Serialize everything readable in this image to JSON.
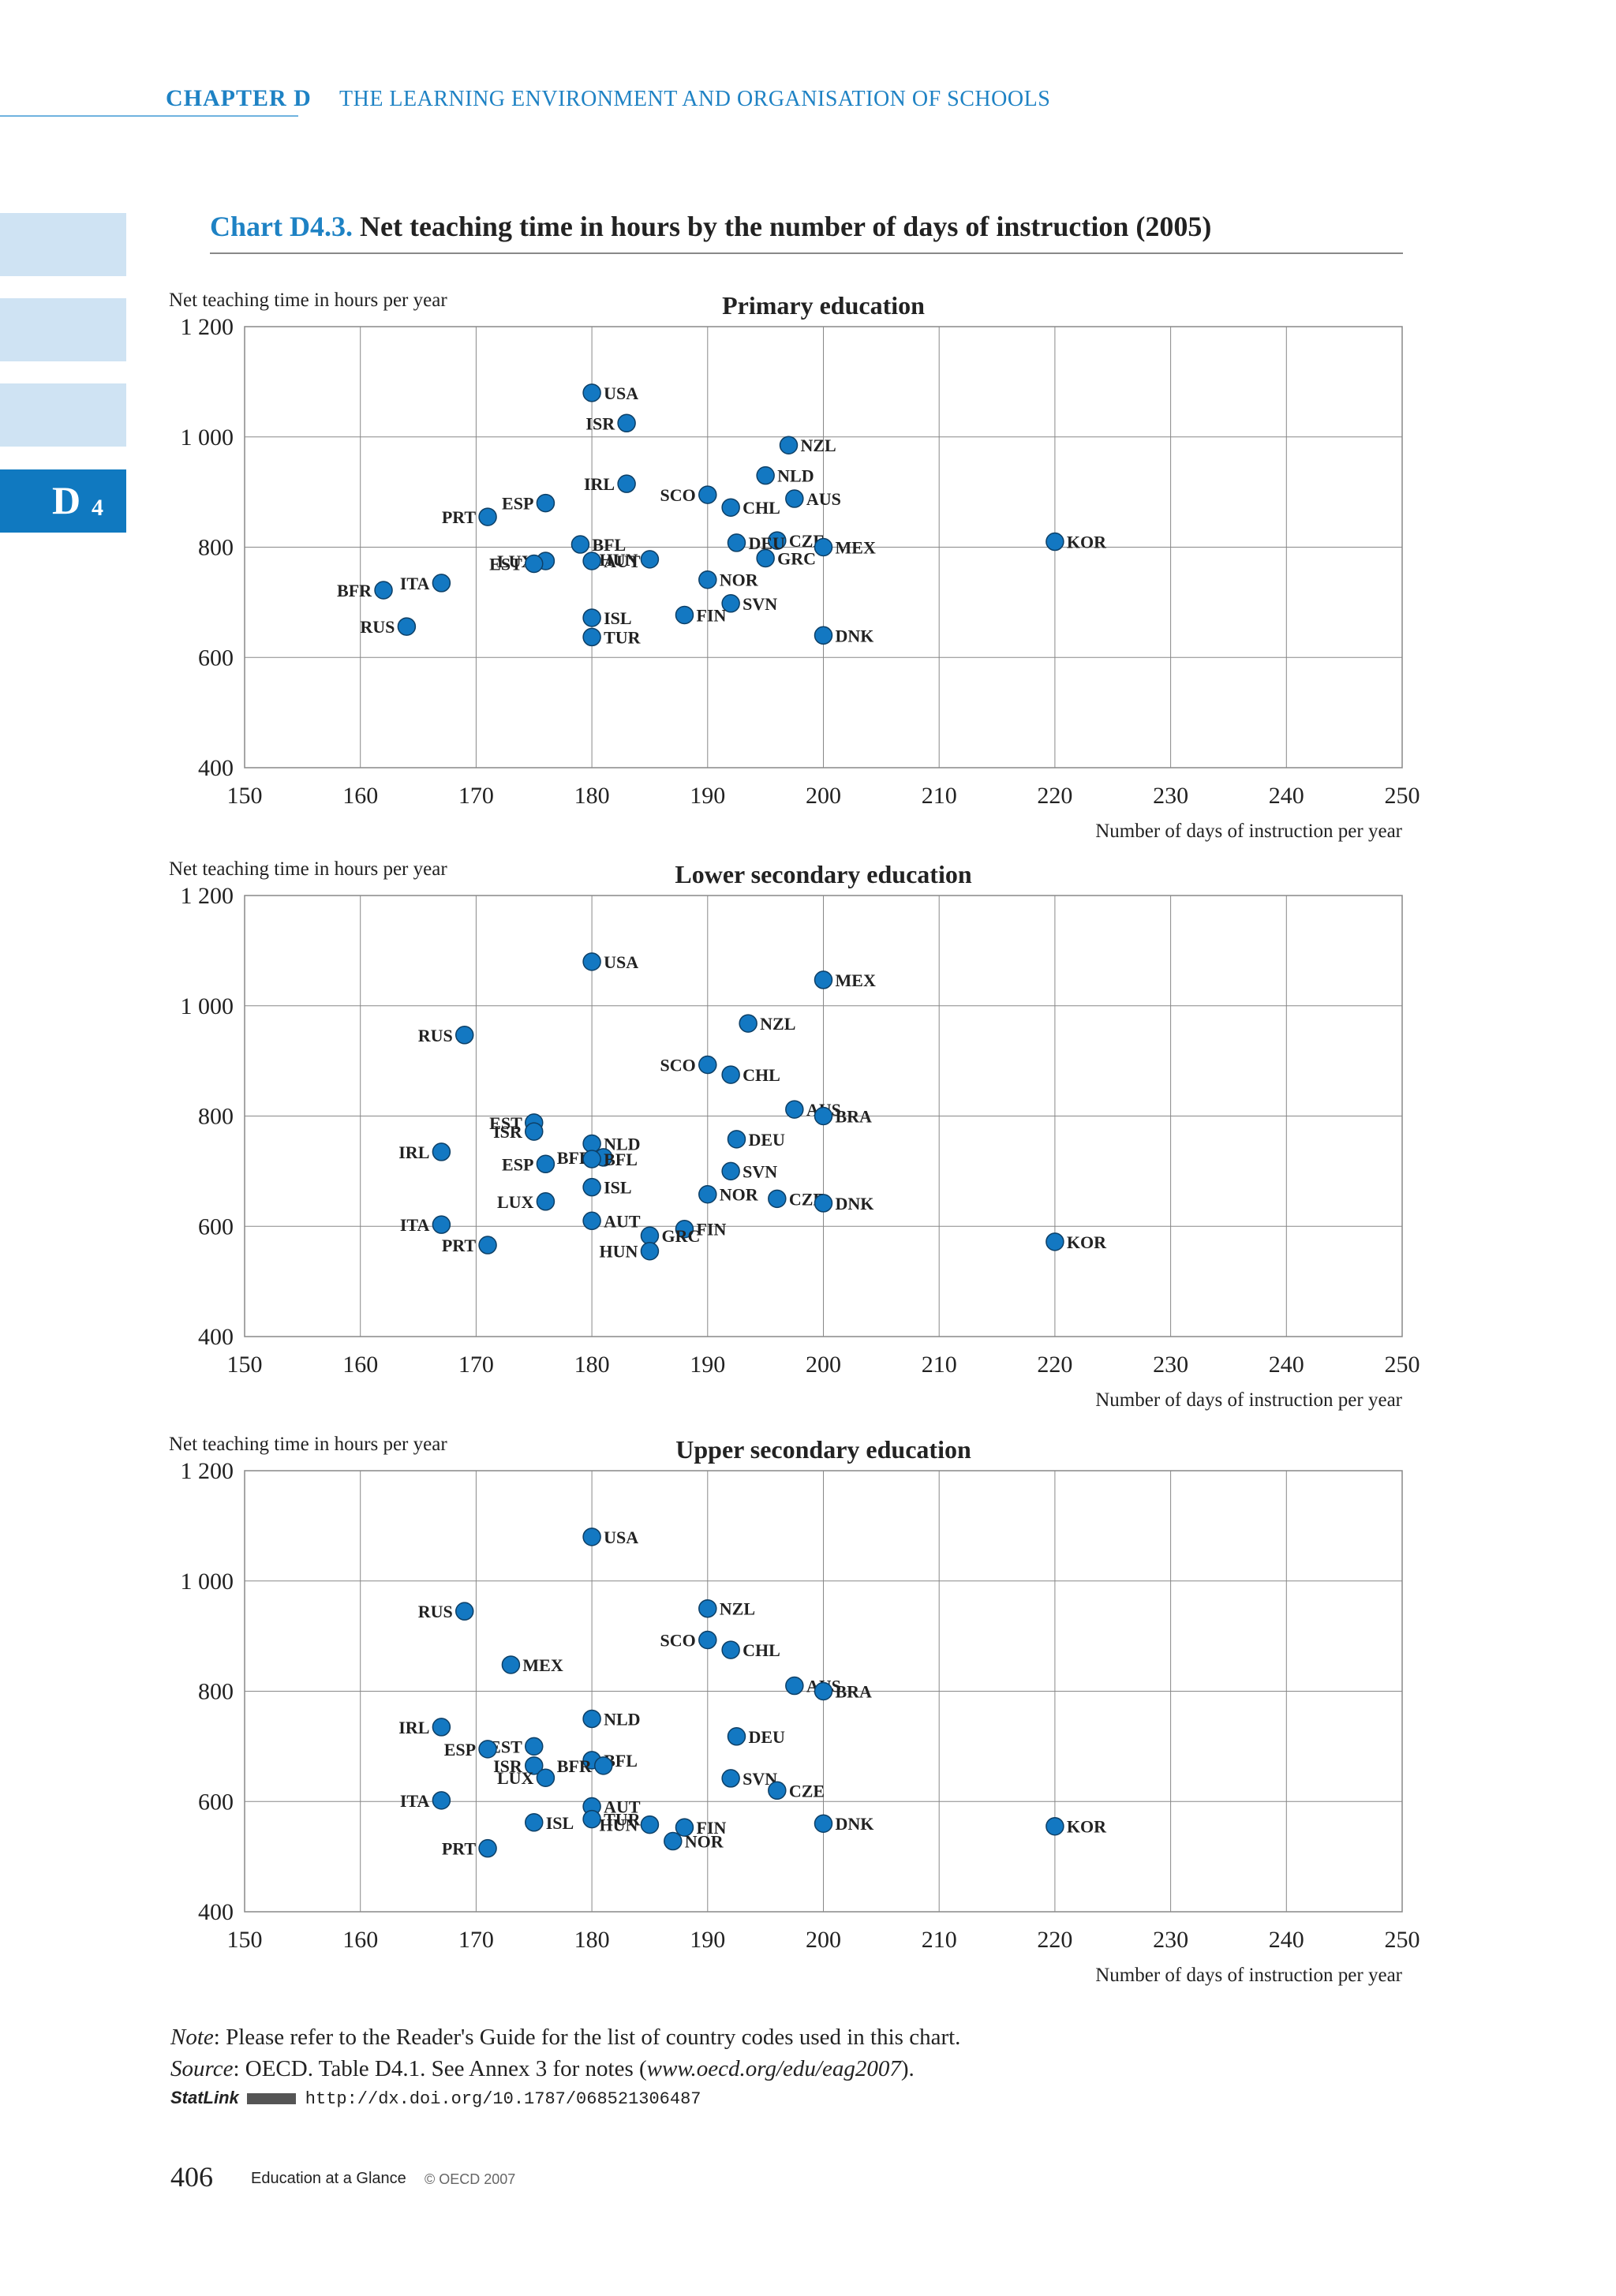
{
  "header": {
    "chapter": "CHAPTER D",
    "title": "THE LEARNING ENVIRONMENT AND ORGANISATION OF SCHOOLS"
  },
  "side_tab": {
    "label": "D",
    "sub": "4"
  },
  "chart_title": {
    "number": "Chart D4.3.",
    "text": "Net teaching time in hours by the number of days of instruction (2005)"
  },
  "chart_data": [
    {
      "type": "scatter",
      "title": "Primary education",
      "ylabel": "Net teaching time in hours per year",
      "xlabel": "Number of days of instruction per year",
      "xlim": [
        150,
        250
      ],
      "ylim": [
        400,
        1200
      ],
      "xticks": [
        "150",
        "160",
        "170",
        "180",
        "190",
        "200",
        "210",
        "220",
        "230",
        "240",
        "250"
      ],
      "yticks": [
        "400",
        "600",
        "800",
        "1 000",
        "1 200"
      ],
      "grid": true,
      "points": [
        {
          "label": "USA",
          "x": 180,
          "y": 1080
        },
        {
          "label": "ISR",
          "x": 183,
          "y": 1025
        },
        {
          "label": "NZL",
          "x": 197,
          "y": 985
        },
        {
          "label": "NLD",
          "x": 195,
          "y": 930
        },
        {
          "label": "IRL",
          "x": 183,
          "y": 915
        },
        {
          "label": "SCO",
          "x": 190,
          "y": 895
        },
        {
          "label": "AUS",
          "x": 197.5,
          "y": 888
        },
        {
          "label": "ESP",
          "x": 176,
          "y": 880
        },
        {
          "label": "CHL",
          "x": 192,
          "y": 872
        },
        {
          "label": "PRT",
          "x": 171,
          "y": 855
        },
        {
          "label": "CZE",
          "x": 196,
          "y": 812
        },
        {
          "label": "KOR",
          "x": 220,
          "y": 810
        },
        {
          "label": "DEU",
          "x": 192.5,
          "y": 808
        },
        {
          "label": "BFL",
          "x": 179,
          "y": 805
        },
        {
          "label": "MEX",
          "x": 200,
          "y": 800
        },
        {
          "label": "GRC",
          "x": 195,
          "y": 780
        },
        {
          "label": "HUN",
          "x": 185,
          "y": 778
        },
        {
          "label": "LUX",
          "x": 176,
          "y": 775
        },
        {
          "label": "AUT",
          "x": 180,
          "y": 775
        },
        {
          "label": "EST",
          "x": 175,
          "y": 770
        },
        {
          "label": "NOR",
          "x": 190,
          "y": 741
        },
        {
          "label": "ITA",
          "x": 167,
          "y": 735
        },
        {
          "label": "BFR",
          "x": 162,
          "y": 722
        },
        {
          "label": "SVN",
          "x": 192,
          "y": 698
        },
        {
          "label": "FIN",
          "x": 188,
          "y": 677
        },
        {
          "label": "ISL",
          "x": 180,
          "y": 672
        },
        {
          "label": "RUS",
          "x": 164,
          "y": 656
        },
        {
          "label": "TUR",
          "x": 180,
          "y": 637
        },
        {
          "label": "DNK",
          "x": 200,
          "y": 640
        }
      ]
    },
    {
      "type": "scatter",
      "title": "Lower secondary education",
      "ylabel": "Net teaching time in hours per year",
      "xlabel": "Number of days of instruction per year",
      "xlim": [
        150,
        250
      ],
      "ylim": [
        400,
        1200
      ],
      "xticks": [
        "150",
        "160",
        "170",
        "180",
        "190",
        "200",
        "210",
        "220",
        "230",
        "240",
        "250"
      ],
      "yticks": [
        "400",
        "600",
        "800",
        "1 000",
        "1 200"
      ],
      "grid": true,
      "points": [
        {
          "label": "USA",
          "x": 180,
          "y": 1080
        },
        {
          "label": "MEX",
          "x": 200,
          "y": 1047
        },
        {
          "label": "NZL",
          "x": 193.5,
          "y": 968
        },
        {
          "label": "RUS",
          "x": 169,
          "y": 947
        },
        {
          "label": "SCO",
          "x": 190,
          "y": 893
        },
        {
          "label": "CHL",
          "x": 192,
          "y": 875
        },
        {
          "label": "AUS",
          "x": 197.5,
          "y": 812
        },
        {
          "label": "BRA",
          "x": 200,
          "y": 800
        },
        {
          "label": "EST",
          "x": 175,
          "y": 788
        },
        {
          "label": "ISR",
          "x": 175,
          "y": 772
        },
        {
          "label": "DEU",
          "x": 192.5,
          "y": 758
        },
        {
          "label": "NLD",
          "x": 180,
          "y": 750
        },
        {
          "label": "IRL",
          "x": 167,
          "y": 735
        },
        {
          "label": "BFR",
          "x": 181,
          "y": 725
        },
        {
          "label": "BFL",
          "x": 180,
          "y": 722
        },
        {
          "label": "ESP",
          "x": 176,
          "y": 713
        },
        {
          "label": "SVN",
          "x": 192,
          "y": 700
        },
        {
          "label": "ISL",
          "x": 180,
          "y": 671
        },
        {
          "label": "NOR",
          "x": 190,
          "y": 658
        },
        {
          "label": "CZE",
          "x": 196,
          "y": 650
        },
        {
          "label": "LUX",
          "x": 176,
          "y": 645
        },
        {
          "label": "DNK",
          "x": 200,
          "y": 642
        },
        {
          "label": "AUT",
          "x": 180,
          "y": 610
        },
        {
          "label": "ITA",
          "x": 167,
          "y": 603
        },
        {
          "label": "FIN",
          "x": 188,
          "y": 595
        },
        {
          "label": "GRC",
          "x": 185,
          "y": 583
        },
        {
          "label": "KOR",
          "x": 220,
          "y": 572
        },
        {
          "label": "PRT",
          "x": 171,
          "y": 566
        },
        {
          "label": "HUN",
          "x": 185,
          "y": 555
        }
      ]
    },
    {
      "type": "scatter",
      "title": "Upper secondary education",
      "ylabel": "Net teaching time in hours per year",
      "xlabel": "Number of days of instruction per year",
      "xlim": [
        150,
        250
      ],
      "ylim": [
        400,
        1200
      ],
      "xticks": [
        "150",
        "160",
        "170",
        "180",
        "190",
        "200",
        "210",
        "220",
        "230",
        "240",
        "250"
      ],
      "yticks": [
        "400",
        "600",
        "800",
        "1 000",
        "1 200"
      ],
      "grid": true,
      "points": [
        {
          "label": "USA",
          "x": 180,
          "y": 1080
        },
        {
          "label": "NZL",
          "x": 190,
          "y": 950
        },
        {
          "label": "RUS",
          "x": 169,
          "y": 945
        },
        {
          "label": "SCO",
          "x": 190,
          "y": 893
        },
        {
          "label": "CHL",
          "x": 192,
          "y": 875
        },
        {
          "label": "MEX",
          "x": 173,
          "y": 848
        },
        {
          "label": "AUS",
          "x": 197.5,
          "y": 810
        },
        {
          "label": "BRA",
          "x": 200,
          "y": 800
        },
        {
          "label": "NLD",
          "x": 180,
          "y": 750
        },
        {
          "label": "IRL",
          "x": 167,
          "y": 735
        },
        {
          "label": "DEU",
          "x": 192.5,
          "y": 718
        },
        {
          "label": "EST",
          "x": 175,
          "y": 700
        },
        {
          "label": "ESP",
          "x": 171,
          "y": 695
        },
        {
          "label": "BFL",
          "x": 180,
          "y": 675
        },
        {
          "label": "BFR",
          "x": 181,
          "y": 665
        },
        {
          "label": "ISR",
          "x": 175,
          "y": 665
        },
        {
          "label": "LUX",
          "x": 176,
          "y": 643
        },
        {
          "label": "SVN",
          "x": 192,
          "y": 642
        },
        {
          "label": "CZE",
          "x": 196,
          "y": 620
        },
        {
          "label": "ITA",
          "x": 167,
          "y": 602
        },
        {
          "label": "AUT",
          "x": 180,
          "y": 591
        },
        {
          "label": "TUR",
          "x": 180,
          "y": 568
        },
        {
          "label": "ISL",
          "x": 175,
          "y": 562
        },
        {
          "label": "DNK",
          "x": 200,
          "y": 560
        },
        {
          "label": "HUN",
          "x": 185,
          "y": 558
        },
        {
          "label": "KOR",
          "x": 220,
          "y": 555
        },
        {
          "label": "FIN",
          "x": 188,
          "y": 553
        },
        {
          "label": "NOR",
          "x": 187,
          "y": 528
        },
        {
          "label": "PRT",
          "x": 171,
          "y": 515
        }
      ]
    }
  ],
  "note": {
    "label": "Note",
    "text": ": Please refer to the Reader's Guide for the list of country codes used in this chart."
  },
  "source": {
    "label": "Source",
    "text": ": OECD. Table D4.1. See Annex 3 for notes (",
    "url": "www.oecd.org/edu/eag2007",
    "tail": ")."
  },
  "statlink": {
    "label": "StatLink",
    "url": "http://dx.doi.org/10.1787/068521306487"
  },
  "footer": {
    "page": "406",
    "publication": "Education at a Glance",
    "copyright": "© OECD 2007"
  },
  "colors": {
    "marker": "#1378c2",
    "marker_stroke": "#0d3f66",
    "accent": "#1e82c4",
    "grid": "#888888"
  }
}
